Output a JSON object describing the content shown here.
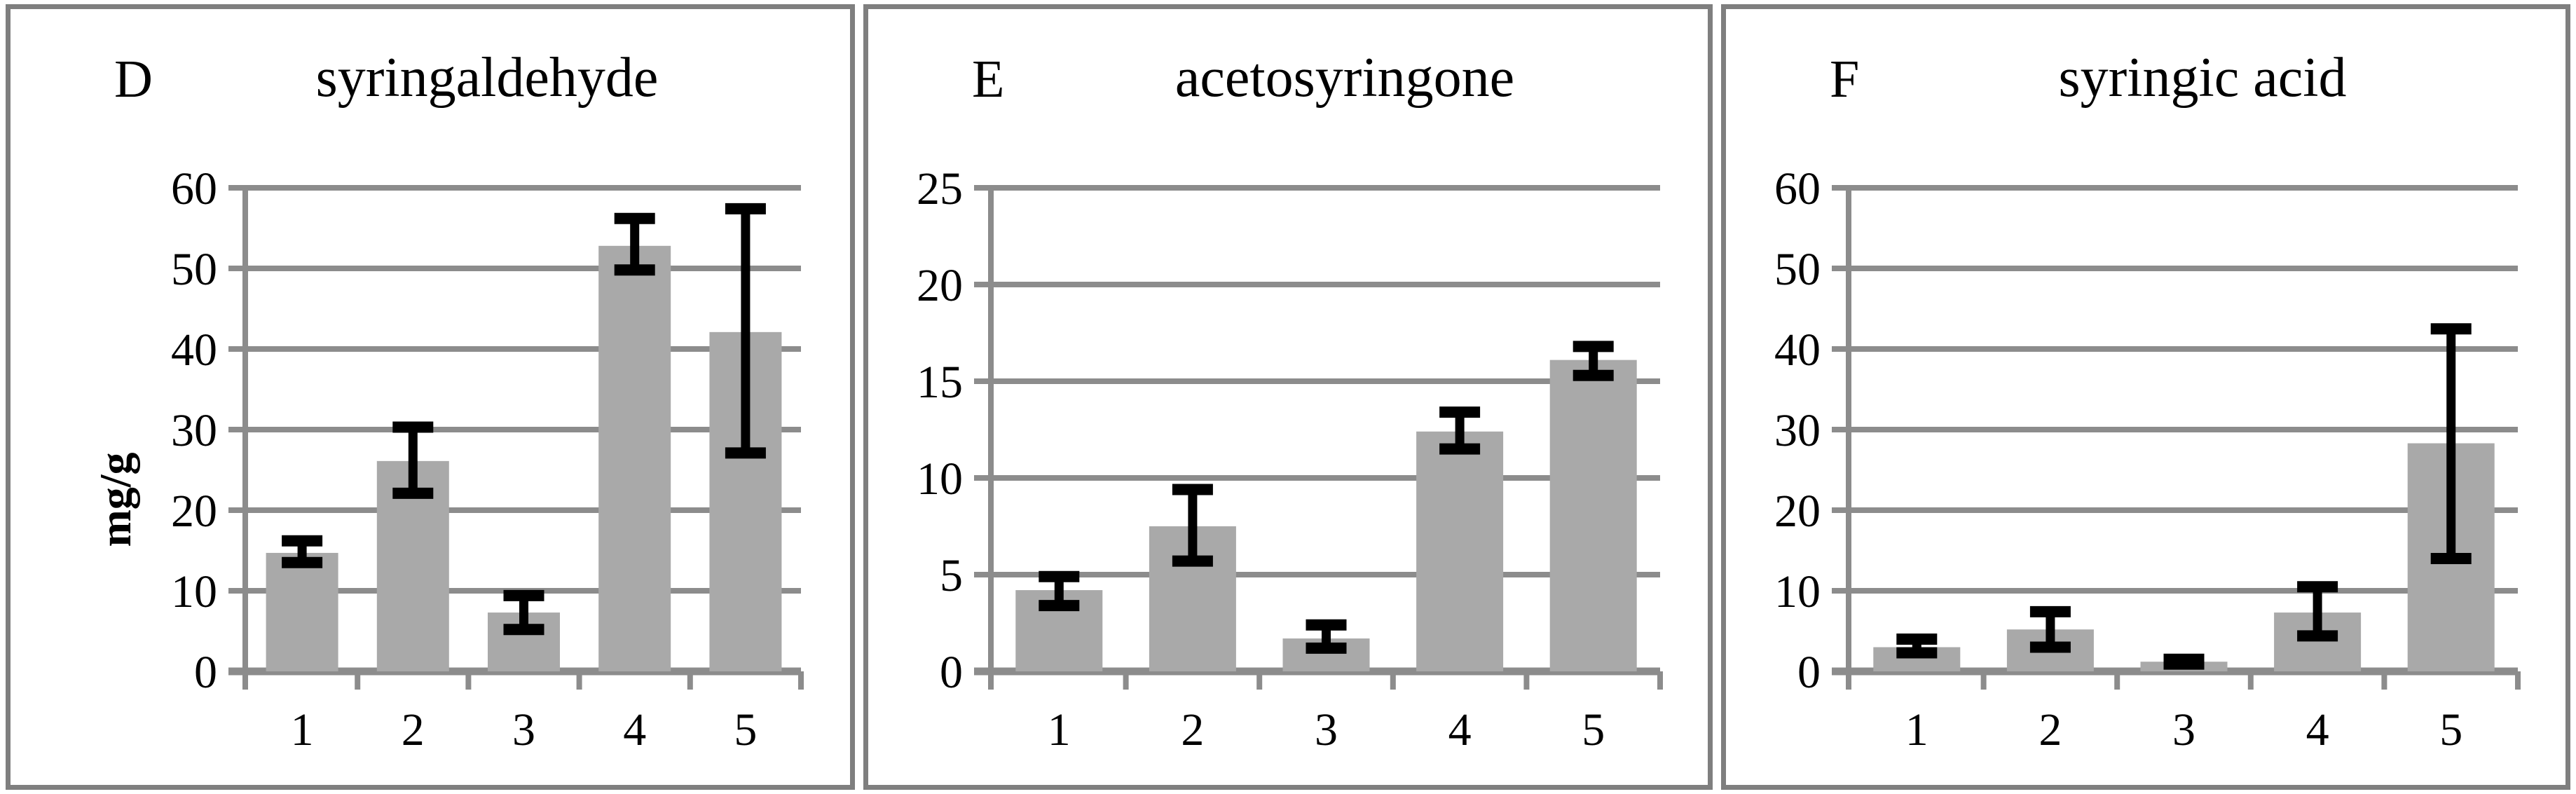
{
  "chart_data": [
    {
      "type": "bar",
      "panel_letter": "D",
      "title": "syringaldehyde",
      "ylabel": "mg/g",
      "categories": [
        "1",
        "2",
        "3",
        "4",
        "5"
      ],
      "values": [
        14.7,
        26.1,
        7.3,
        52.8,
        42.1
      ],
      "error_low": [
        13.5,
        22.1,
        5.2,
        49.8,
        27.1
      ],
      "error_high": [
        16.2,
        30.3,
        9.4,
        56.2,
        57.4
      ],
      "ylim": [
        0,
        60
      ],
      "yticks": [
        0,
        10,
        20,
        30,
        40,
        50,
        60
      ],
      "grid": true,
      "legend": "none",
      "bar_color": "#a9a9a9",
      "grid_color": "#8c8c8c",
      "error_color": "#000000"
    },
    {
      "type": "bar",
      "panel_letter": "E",
      "title": "acetosyringone",
      "categories": [
        "1",
        "2",
        "3",
        "4",
        "5"
      ],
      "values": [
        4.2,
        7.5,
        1.7,
        12.4,
        16.1
      ],
      "error_low": [
        3.4,
        5.7,
        1.2,
        11.5,
        15.3
      ],
      "error_high": [
        4.9,
        9.4,
        2.4,
        13.4,
        16.8
      ],
      "ylim": [
        0,
        25
      ],
      "yticks": [
        0,
        5,
        10,
        15,
        20,
        25
      ],
      "grid": true,
      "legend": "none",
      "bar_color": "#a9a9a9",
      "grid_color": "#8c8c8c",
      "error_color": "#000000"
    },
    {
      "type": "bar",
      "panel_letter": "F",
      "title": "syringic acid",
      "categories": [
        "1",
        "2",
        "3",
        "4",
        "5"
      ],
      "values": [
        3.0,
        5.2,
        1.2,
        7.3,
        28.3
      ],
      "error_low": [
        2.3,
        3.0,
        0.9,
        4.4,
        14.0
      ],
      "error_high": [
        4.0,
        7.4,
        1.5,
        10.5,
        42.5
      ],
      "ylim": [
        0,
        60
      ],
      "yticks": [
        0,
        10,
        20,
        30,
        40,
        50,
        60
      ],
      "grid": true,
      "legend": "none",
      "bar_color": "#a9a9a9",
      "grid_color": "#8c8c8c",
      "error_color": "#000000"
    }
  ]
}
